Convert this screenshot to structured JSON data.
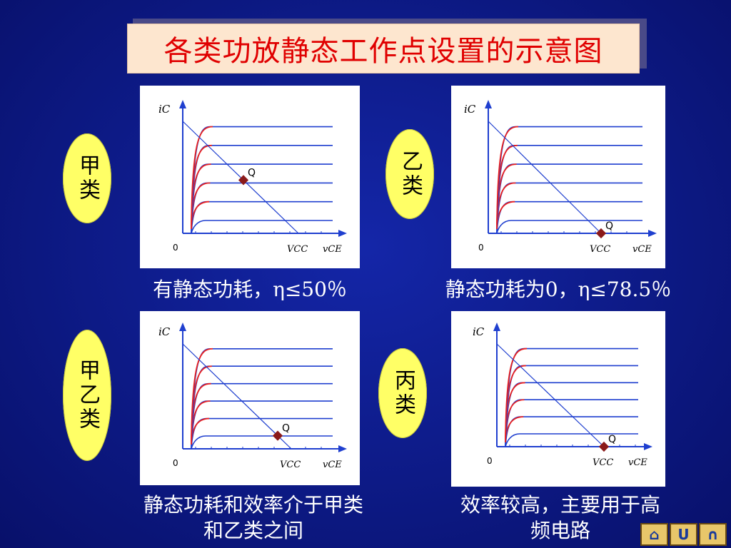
{
  "title": "各类功放静态工作点设置的示意图",
  "panels": [
    {
      "class_label": "甲类",
      "caption": "有静态功耗，η≤50％",
      "q_label": "Q",
      "vcc_label": "VCC",
      "vce_label": "vCE",
      "ic_label": "iC",
      "origin_label": "0"
    },
    {
      "class_label": "乙类",
      "caption": "静态功耗为0，η≤78.5％",
      "q_label": "Q",
      "vcc_label": "VCC",
      "vce_label": "vCE",
      "ic_label": "iC",
      "origin_label": "0"
    },
    {
      "class_label": "甲乙类",
      "caption_line1": "静态功耗和效率介于甲类",
      "caption_line2": "和乙类之间",
      "q_label": "Q",
      "vcc_label": "VCC",
      "vce_label": "vCE",
      "ic_label": "iC",
      "origin_label": "0"
    },
    {
      "class_label": "丙类",
      "caption_line1": "效率较高，主要用于高",
      "caption_line2": "频电路",
      "q_label": "Q",
      "vcc_label": "VCC",
      "vce_label": "vCE",
      "ic_label": "iC",
      "origin_label": "0"
    }
  ],
  "nav": {
    "home": "⌂",
    "back": "U",
    "next": "∩"
  },
  "colors": {
    "background": "#0d1a86",
    "title_text": "#e00000",
    "title_bg": "#fde6cf",
    "oval": "#ffff66",
    "curve_blue": "#1f3fcf",
    "curve_red": "#e82020",
    "q_point": "#8b1a1a"
  }
}
